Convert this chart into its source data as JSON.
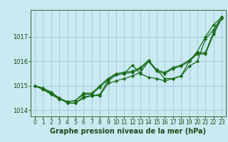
{
  "title": "Graphe pression niveau de la mer (hPa)",
  "xlabel_hours": [
    0,
    1,
    2,
    3,
    4,
    5,
    6,
    7,
    8,
    9,
    10,
    11,
    12,
    13,
    14,
    15,
    16,
    17,
    18,
    19,
    20,
    21,
    22,
    23
  ],
  "series": [
    [
      1015.0,
      1014.9,
      1014.7,
      1014.5,
      1014.3,
      1014.3,
      1014.5,
      1014.6,
      1014.6,
      1015.1,
      1015.2,
      1015.3,
      1015.4,
      1015.55,
      1016.0,
      1015.65,
      1015.3,
      1015.3,
      1015.4,
      1016.0,
      1016.4,
      1017.0,
      1017.5,
      1017.8
    ],
    [
      1015.0,
      1014.9,
      1014.7,
      1014.5,
      1014.3,
      1014.3,
      1014.55,
      1014.6,
      1014.65,
      1015.2,
      1015.45,
      1015.5,
      1015.85,
      1015.5,
      1015.35,
      1015.3,
      1015.2,
      1015.3,
      1015.4,
      1015.8,
      1016.0,
      1016.9,
      1017.3,
      1017.8
    ],
    [
      1015.0,
      1014.9,
      1014.75,
      1014.5,
      1014.35,
      1014.4,
      1014.7,
      1014.7,
      1015.0,
      1015.3,
      1015.5,
      1015.55,
      1015.6,
      1015.75,
      1016.05,
      1015.65,
      1015.55,
      1015.75,
      1015.85,
      1016.05,
      1016.35,
      1016.35,
      1017.2,
      1017.8
    ],
    [
      1015.0,
      1014.85,
      1014.65,
      1014.45,
      1014.35,
      1014.4,
      1014.65,
      1014.65,
      1014.95,
      1015.25,
      1015.45,
      1015.5,
      1015.55,
      1015.7,
      1016.0,
      1015.6,
      1015.5,
      1015.7,
      1015.8,
      1016.0,
      1016.3,
      1016.3,
      1017.1,
      1017.75
    ]
  ],
  "line_color": "#1a6b1a",
  "marker_color": "#1a6b1a",
  "bg_color": "#c8eaf0",
  "grid_color": "#a0c8d8",
  "ylim": [
    1013.75,
    1018.1
  ],
  "yticks": [
    1014,
    1015,
    1016,
    1017
  ],
  "marker_size": 2.2,
  "line_width": 0.9,
  "label_fontsize": 6.0,
  "title_fontsize": 7.0
}
